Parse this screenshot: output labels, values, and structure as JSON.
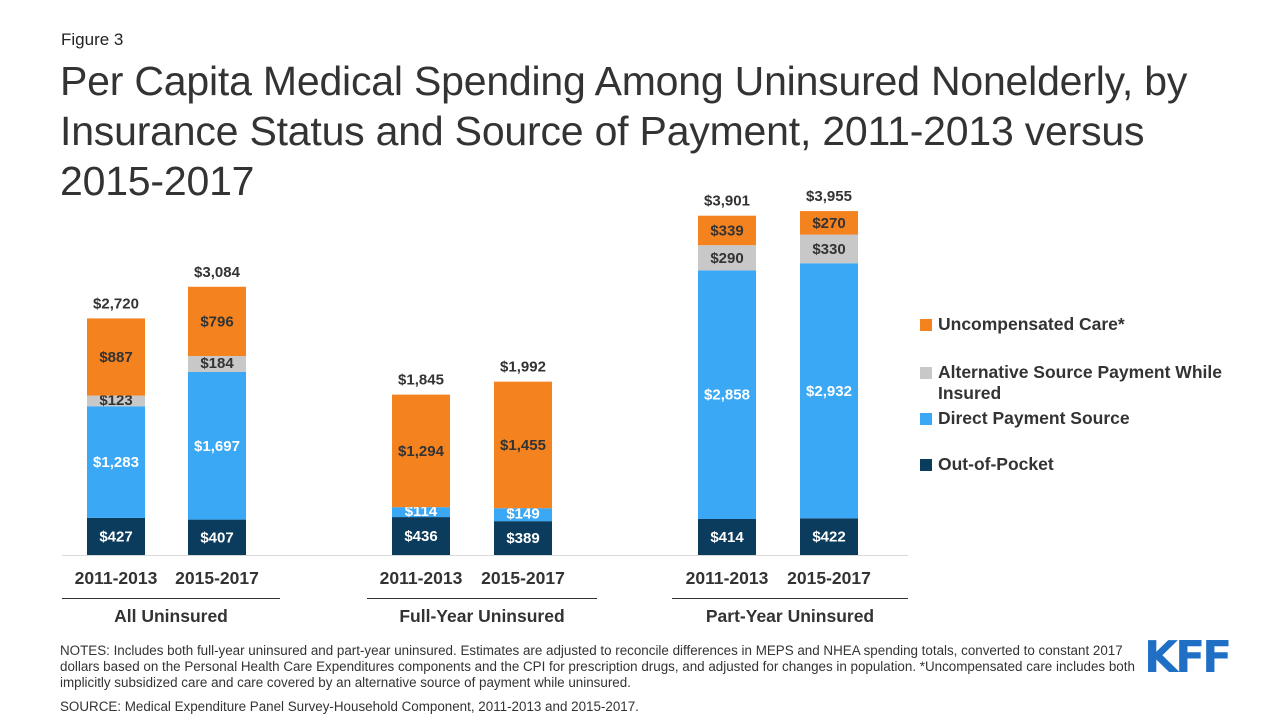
{
  "figure_label": "Figure 3",
  "title": "Per Capita Medical Spending Among Uninsured Nonelderly, by Insurance Status and Source of Payment, 2011-2013 versus 2015-2017",
  "notes": "NOTES: Includes both full-year uninsured and part-year uninsured. Estimates are adjusted to reconcile differences in MEPS and NHEA spending totals, converted to constant 2017 dollars based on the Personal Health Care Expenditures components and the CPI for prescription drugs, and adjusted for changes in population. *Uncompensated care includes both implicitly subsidized care and care covered by an alternative source of payment while uninsured.",
  "source": "SOURCE: Medical Expenditure Panel Survey-Household Component, 2011-2013 and 2015-2017.",
  "logo": "KFF",
  "chart_data": {
    "type": "bar",
    "stacked": true,
    "groups": [
      {
        "name": "All Uninsured",
        "categories": [
          "2011-2013",
          "2015-2017"
        ]
      },
      {
        "name": "Full-Year Uninsured",
        "categories": [
          "2011-2013",
          "2015-2017"
        ]
      },
      {
        "name": "Part-Year Uninsured",
        "categories": [
          "2011-2013",
          "2015-2017"
        ]
      }
    ],
    "categories": [
      "2011-2013",
      "2015-2017",
      "2011-2013",
      "2015-2017",
      "2011-2013",
      "2015-2017"
    ],
    "series": [
      {
        "name": "Out-of-Pocket",
        "color": "#0b3c5d",
        "values": [
          427,
          407,
          436,
          389,
          414,
          422
        ],
        "labels": [
          "$427",
          "$407",
          "$436",
          "$389",
          "$414",
          "$422"
        ]
      },
      {
        "name": "Direct Payment Source",
        "color": "#3aa8f5",
        "values": [
          1283,
          1697,
          114,
          149,
          2858,
          2932
        ],
        "labels": [
          "$1,283",
          "$1,697",
          "$114",
          "$149",
          "$2,858",
          "$2,932"
        ]
      },
      {
        "name": "Alternative Source Payment While Insured",
        "color": "#c8c8c8",
        "values": [
          123,
          184,
          0,
          0,
          290,
          330
        ],
        "labels": [
          "$123",
          "$184",
          "",
          "",
          "$290",
          "$330"
        ]
      },
      {
        "name": "Uncompensated Care*",
        "color": "#f4821f",
        "values": [
          887,
          796,
          1294,
          1455,
          339,
          270
        ],
        "labels": [
          "$887",
          "$796",
          "$1,294",
          "$1,455",
          "$339",
          "$270"
        ]
      }
    ],
    "totals": [
      2720,
      3084,
      1845,
      1992,
      3901,
      3955
    ],
    "total_labels": [
      "$2,720",
      "$3,084",
      "$1,845",
      "$1,992",
      "$3,901",
      "$3,955"
    ],
    "legend_order": [
      "Uncompensated Care*",
      "Alternative Source Payment While Insured",
      "Direct Payment Source",
      "Out-of-Pocket"
    ],
    "legend_position": "right",
    "grid": false,
    "ylim": [
      0,
      4000
    ]
  }
}
